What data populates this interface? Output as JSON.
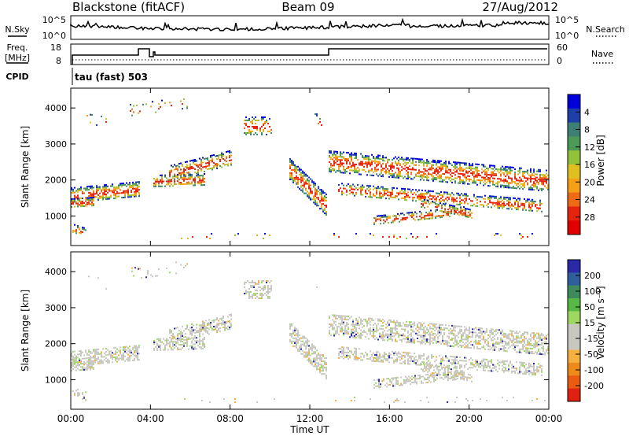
{
  "header": {
    "station": "Blackstone (fitACF)",
    "beam": "Beam 09",
    "date": "27/Aug/2012"
  },
  "panels": {
    "noise": {
      "left_label": "N.Sky",
      "right_label": "N.Search",
      "left_ticks": [
        "10^5",
        "10^0"
      ],
      "right_ticks": [
        "10^5",
        "10^0"
      ]
    },
    "freq": {
      "left_label_top": "Freq.",
      "left_label_bottom": "[MHz]",
      "right_label": "Nave",
      "left_ticks": [
        "18",
        "8"
      ],
      "right_ticks": [
        "60",
        "0"
      ]
    },
    "cpid": {
      "label": "CPID",
      "text": "tau (fast) 503"
    }
  },
  "chart_data": [
    {
      "type": "heatmap",
      "name": "power",
      "ylabel": "Slant Range [km]",
      "yticks": [
        1000,
        2000,
        3000,
        4000
      ],
      "ylim": [
        180,
        4550
      ],
      "colorbar": {
        "label": "Power [dB]",
        "ticks": [
          "4",
          "8",
          "12",
          "16",
          "20",
          "24",
          "28"
        ],
        "colors": [
          "#0000dd",
          "#1f3fa8",
          "#3e7f74",
          "#4c9a55",
          "#92c23a",
          "#e0c020",
          "#f5a017",
          "#ef6a14",
          "#e52410",
          "#e00000"
        ]
      }
    },
    {
      "type": "heatmap",
      "name": "velocity",
      "ylabel": "Slant Range [km]",
      "yticks": [
        1000,
        2000,
        3000,
        4000
      ],
      "ylim": [
        180,
        4550
      ],
      "colorbar": {
        "label": "Velocity [m s⁻¹]",
        "ticks": [
          "200",
          "100",
          "50",
          "15",
          "-15",
          "-50",
          "-100",
          "-200"
        ],
        "colors": [
          "#2a2aa8",
          "#2f5f9a",
          "#3e8a5a",
          "#58b846",
          "#9fd860",
          "#c8c8c0",
          "#c8c8c0",
          "#f5b040",
          "#ee8a1a",
          "#ea5a10",
          "#e02010"
        ]
      }
    }
  ],
  "time_axis": {
    "label": "Time UT",
    "ticks": [
      "00:00",
      "04:00",
      "08:00",
      "12:00",
      "16:00",
      "20:00",
      "00:00"
    ]
  }
}
